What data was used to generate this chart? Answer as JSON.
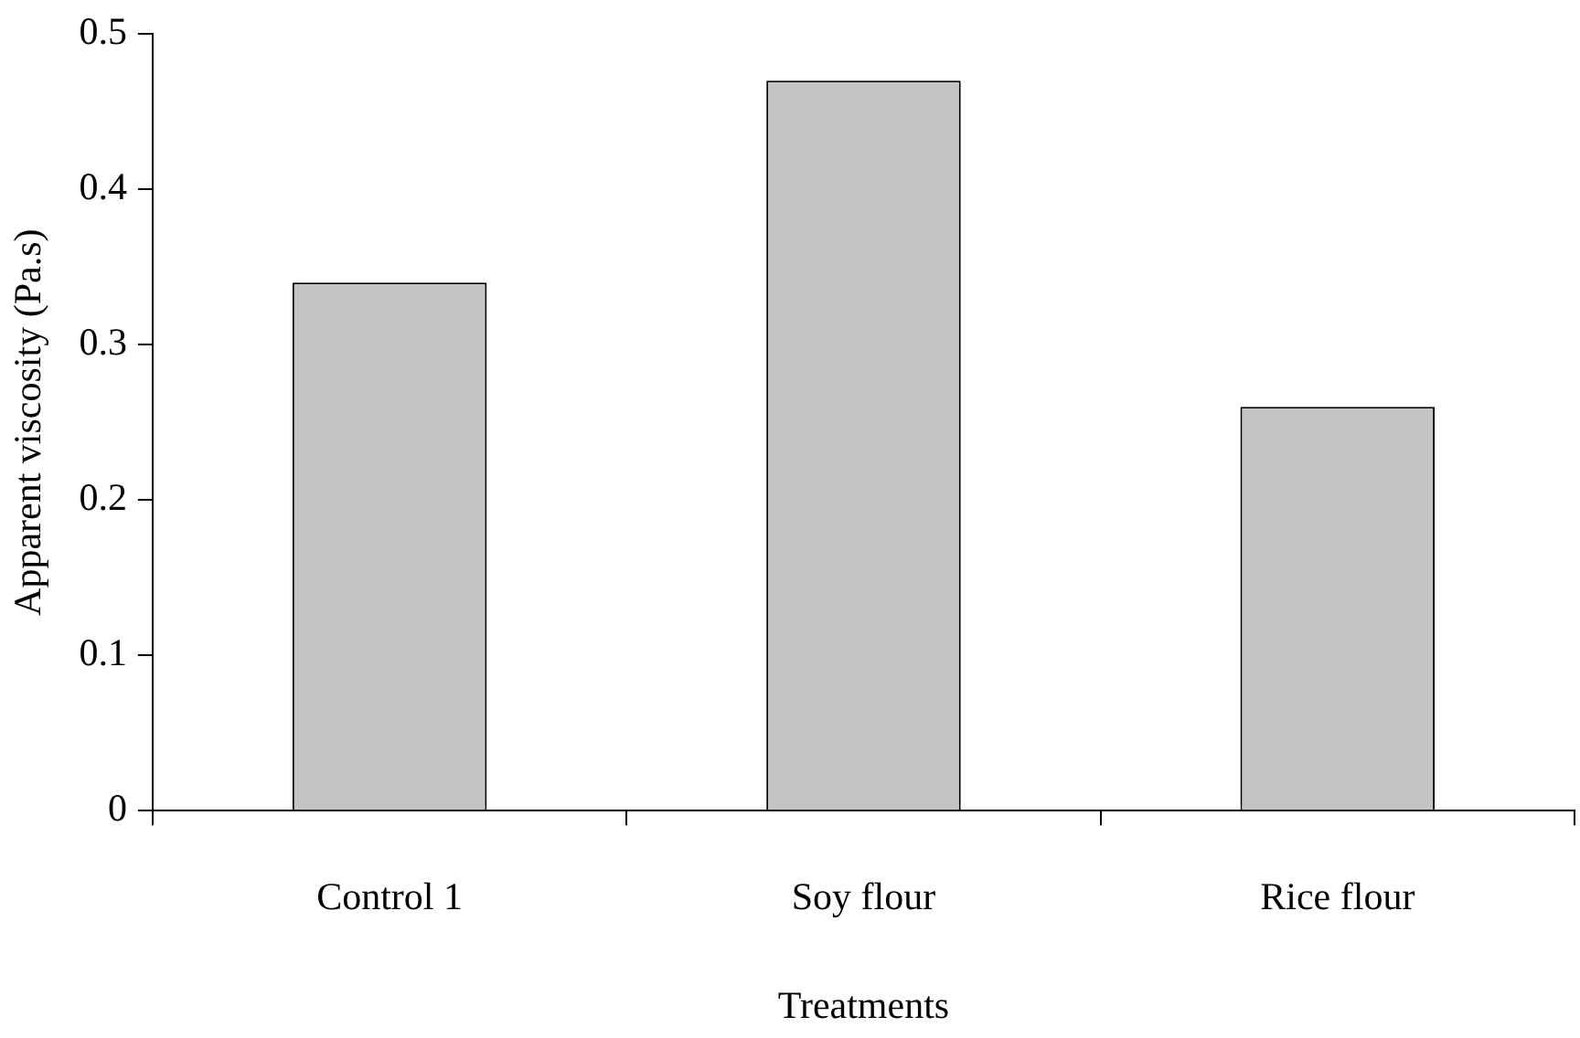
{
  "chart_data": {
    "type": "bar",
    "xlabel": "Treatments",
    "ylabel": "Apparent viscosity (Pa.s)",
    "categories": [
      "Control 1",
      "Soy flour",
      "Rice flour"
    ],
    "values": [
      0.34,
      0.47,
      0.26
    ],
    "color": "#c4c4c4",
    "ylim": [
      0,
      0.5
    ],
    "yticks": [
      0,
      0.1,
      0.2,
      0.3,
      0.4,
      0.5
    ],
    "grid": false,
    "legend": false
  }
}
